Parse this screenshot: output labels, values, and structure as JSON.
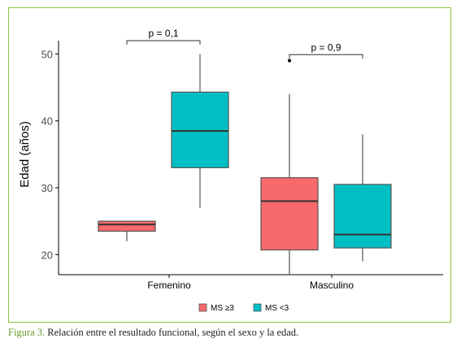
{
  "chart_data": {
    "type": "boxplot",
    "ylabel": "Edad (años)",
    "ylim": [
      17,
      52
    ],
    "yticks": [
      20,
      30,
      40,
      50
    ],
    "categories": [
      "Femenino",
      "Masculino"
    ],
    "legend_placement": "bottom-center",
    "grid": false,
    "series": [
      {
        "name": "MS ≥3",
        "color": "#f8696b",
        "boxes": [
          {
            "category": "Femenino",
            "min": 22,
            "q1": 23.5,
            "median": 24.5,
            "q3": 25,
            "max": 25,
            "outliers": []
          },
          {
            "category": "Masculino",
            "min": 17,
            "q1": 20.7,
            "median": 28,
            "q3": 31.5,
            "max": 44,
            "outliers": [
              49
            ]
          }
        ]
      },
      {
        "name": "MS <3",
        "color": "#00bfc4",
        "boxes": [
          {
            "category": "Femenino",
            "min": 27,
            "q1": 33,
            "median": 38.5,
            "q3": 44.3,
            "max": 50,
            "outliers": []
          },
          {
            "category": "Masculino",
            "min": 19,
            "q1": 21,
            "median": 23,
            "q3": 30.5,
            "max": 38,
            "outliers": []
          }
        ]
      }
    ],
    "annotations": [
      {
        "category": "Femenino",
        "text": "p = 0,1",
        "y": 52
      },
      {
        "category": "Masculino",
        "text": "p = 0,9",
        "y": 49.9
      }
    ]
  },
  "caption": {
    "label": "Figura 3.",
    "text": " Relación entre el resultado funcional, según el sexo y la edad."
  }
}
